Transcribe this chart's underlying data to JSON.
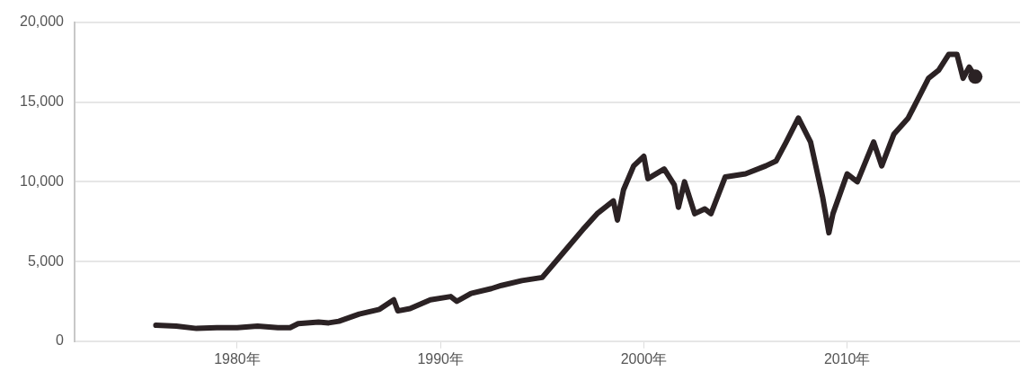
{
  "chart_data": {
    "type": "line",
    "color": "#2b2224",
    "x": [
      1976.0,
      1977,
      1978,
      1979,
      1980,
      1981,
      1982,
      1982.6,
      1983,
      1984,
      1984.5,
      1985,
      1986,
      1987.0,
      1987.7,
      1987.9,
      1988.5,
      1989.5,
      1990.5,
      1990.8,
      1991.5,
      1992.5,
      1993,
      1994,
      1995,
      1996,
      1997,
      1997.7,
      1998.5,
      1998.7,
      1999,
      1999.5,
      2000.0,
      2000.2,
      2001,
      2001.5,
      2001.7,
      2002,
      2002.5,
      2003,
      2003.3,
      2004,
      2005,
      2006,
      2006.5,
      2007,
      2007.6,
      2008.2,
      2008.8,
      2009.1,
      2009.3,
      2010,
      2010.5,
      2011.3,
      2011.7,
      2012.3,
      2013,
      2014,
      2014.5,
      2015,
      2015.4,
      2015.7,
      2016.0,
      2016.3
    ],
    "values": [
      1000,
      950,
      800,
      850,
      850,
      950,
      850,
      850,
      1100,
      1200,
      1150,
      1250,
      1700,
      2000,
      2600,
      1900,
      2050,
      2600,
      2800,
      2500,
      3000,
      3300,
      3500,
      3800,
      4000,
      5500,
      7000,
      8000,
      8800,
      7600,
      9500,
      11000,
      11600,
      10200,
      10800,
      9800,
      8400,
      10000,
      8000,
      8300,
      8000,
      10300,
      10500,
      11000,
      11300,
      12500,
      14000,
      12500,
      9000,
      6800,
      8000,
      10500,
      10000,
      12500,
      11000,
      13000,
      14000,
      16500,
      17000,
      18000,
      18000,
      16500,
      17200,
      16600
    ],
    "xlim": [
      1972,
      2018.5
    ],
    "xticks": [
      {
        "value": 1980,
        "label": "1980年"
      },
      {
        "value": 1990,
        "label": "1990年"
      },
      {
        "value": 2000,
        "label": "2000年"
      },
      {
        "value": 2010,
        "label": "2010年"
      }
    ],
    "ylim": [
      0,
      20000
    ],
    "yticks": [
      {
        "value": 0,
        "label": "0"
      },
      {
        "value": 5000,
        "label": "5,000"
      },
      {
        "value": 10000,
        "label": "10,000"
      },
      {
        "value": 15000,
        "label": "15,000"
      },
      {
        "value": 20000,
        "label": "20,000"
      }
    ],
    "grid": "y"
  }
}
